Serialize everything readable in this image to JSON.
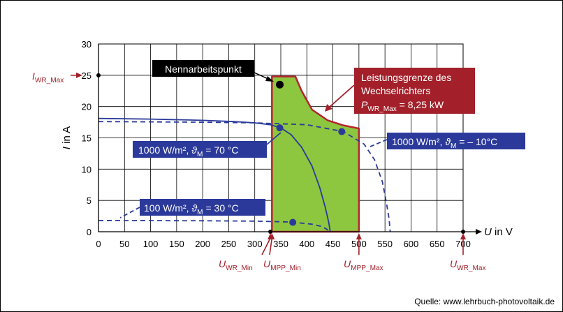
{
  "chart_data": {
    "type": "line",
    "xlabel": "U in V",
    "ylabel": "I in A",
    "xlim": [
      0,
      700
    ],
    "ylim": [
      0,
      30
    ],
    "x_ticks": [
      0,
      50,
      100,
      150,
      200,
      250,
      300,
      350,
      400,
      450,
      500,
      550,
      600,
      650,
      700
    ],
    "y_ticks": [
      0,
      5,
      10,
      15,
      20,
      25,
      30
    ],
    "grid": true,
    "series": [
      {
        "name": "1000 W/m²; ϑM = 70 °C",
        "style": "solid",
        "color": "#2b3a9a",
        "points": [
          [
            0,
            18.1
          ],
          [
            100,
            18.0
          ],
          [
            200,
            17.8
          ],
          [
            260,
            17.6
          ],
          [
            300,
            17.4
          ],
          [
            330,
            17.1
          ],
          [
            350,
            16.6
          ],
          [
            370,
            15.5
          ],
          [
            390,
            13.5
          ],
          [
            410,
            10.5
          ],
          [
            425,
            7.0
          ],
          [
            435,
            4.0
          ],
          [
            442,
            1.5
          ],
          [
            445,
            0
          ]
        ]
      },
      {
        "name": "1000 W/m²; ϑM = – 10°C",
        "style": "dashed",
        "color": "#2b3a9a",
        "points": [
          [
            0,
            17.6
          ],
          [
            100,
            17.55
          ],
          [
            200,
            17.5
          ],
          [
            300,
            17.4
          ],
          [
            400,
            17.1
          ],
          [
            470,
            16.0
          ],
          [
            510,
            14.0
          ],
          [
            530,
            11.5
          ],
          [
            545,
            8.0
          ],
          [
            553,
            4.5
          ],
          [
            558,
            2.0
          ],
          [
            560,
            0
          ]
        ]
      },
      {
        "name": "100 W/m²; ϑM = 30 °C",
        "style": "dashed",
        "color": "#2b3a9a",
        "points": [
          [
            0,
            1.8
          ],
          [
            200,
            1.75
          ],
          [
            300,
            1.7
          ],
          [
            370,
            1.55
          ],
          [
            410,
            1.2
          ],
          [
            430,
            0.8
          ],
          [
            440,
            0.3
          ],
          [
            445,
            0
          ]
        ]
      }
    ],
    "operating_region": {
      "label": "Leistungsgrenze des Wechselrichters",
      "fill": "#8dc63f",
      "outline": "#b5252f",
      "points": [
        [
          333,
          0
        ],
        [
          333,
          24.8
        ],
        [
          378,
          24.8
        ],
        [
          390,
          22.5
        ],
        [
          410,
          19.5
        ],
        [
          440,
          17.8
        ],
        [
          470,
          17.0
        ],
        [
          500,
          16.5
        ],
        [
          500,
          0
        ]
      ]
    },
    "markers": [
      {
        "x": 348,
        "y": 23.5,
        "color": "#000000"
      },
      {
        "x": 348,
        "y": 16.6,
        "color": "#2b3a9a"
      },
      {
        "x": 467,
        "y": 16.0,
        "color": "#2b3a9a"
      },
      {
        "x": 373,
        "y": 1.5,
        "color": "#2b3a9a"
      },
      {
        "x": 0,
        "y": 25,
        "color": "#000000"
      },
      {
        "x": 330,
        "y": 0,
        "color": "#000000"
      },
      {
        "x": 700,
        "y": 0,
        "color": "#000000"
      }
    ],
    "axis_markers": {
      "i_wr_max": {
        "main": "I",
        "sub": "WR_Max",
        "value": 25
      },
      "u_wr_min": {
        "main": "U",
        "sub": "WR_Min",
        "value": 330
      },
      "u_mpp_min": {
        "main": "U",
        "sub": "MPP_Min",
        "value": 333
      },
      "u_mpp_max": {
        "main": "U",
        "sub": "MPP_Max",
        "value": 500
      },
      "u_wr_max": {
        "main": "U",
        "sub": "WR_Max",
        "value": 700
      }
    },
    "annotations": {
      "nennarbeitspunkt": "Nennarbeitspunkt",
      "limit_line1": "Leistungsgrenze  des",
      "limit_line2": "Wechselrichters",
      "limit_p_main": "P",
      "limit_p_sub": "WR_Max",
      "limit_p_value": " = 8,25 kW",
      "label_70_text": "1000 W/m², ",
      "label_70_theta": "ϑ",
      "label_70_sub": "M",
      "label_70_value": " = 70 °C",
      "label_m10_text": "1000 W/m², ",
      "label_m10_theta": "ϑ",
      "label_m10_sub": "M",
      "label_m10_value": " = – 10°C",
      "label_100_text": "100 W/m², ",
      "label_100_theta": "ϑ",
      "label_100_sub": "M",
      "label_100_value": " = 30 °C",
      "xlabel_main": "U",
      "xlabel_rest": " in V",
      "ylabel_main": "I",
      "ylabel_rest": " in A"
    },
    "source": "Quelle: www.lehrbuch-photovoltaik.de",
    "colors": {
      "curve": "#2b3a9a",
      "label_box": "#2b3a9a",
      "limit_box": "#a3202a",
      "accent_red": "#a3202a",
      "region_fill": "#8dc63f",
      "region_outline": "#b5252f",
      "plot_bg": "#ffffff",
      "grid": "#000000"
    }
  }
}
